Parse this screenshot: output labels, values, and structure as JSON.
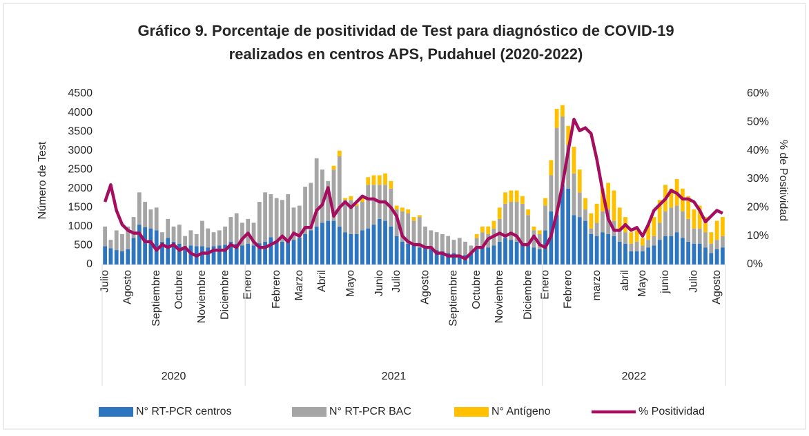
{
  "chart_data": {
    "type": "bar",
    "title": "Gráfico 9. Porcentaje de positividad de Test para diagnóstico de COVID-19",
    "subtitle": "realizados en centros APS, Pudahuel (2020-2022)",
    "ylabel": "Número de Test",
    "y2label": "% de Positividad",
    "stacked": true,
    "grid": false,
    "legend": "bottom",
    "categories": [
      "Julio",
      null,
      null,
      null,
      "Agosto",
      null,
      null,
      null,
      null,
      "Septiembre",
      null,
      null,
      null,
      "Octubre",
      null,
      null,
      null,
      "Noviembre",
      null,
      null,
      null,
      "Diciembre",
      null,
      null,
      null,
      "Enero",
      null,
      null,
      null,
      null,
      "Febrero",
      null,
      null,
      null,
      "Marzo",
      null,
      null,
      null,
      "Abril",
      null,
      null,
      null,
      null,
      "Mayo",
      null,
      null,
      null,
      null,
      "Junio",
      null,
      null,
      "Julio",
      null,
      null,
      null,
      null,
      "Agosto",
      null,
      null,
      null,
      null,
      "Septiembre",
      null,
      null,
      null,
      "Octubre",
      null,
      null,
      null,
      "Noviembre",
      null,
      null,
      null,
      null,
      "Diciembre",
      null,
      null,
      "Enero",
      null,
      null,
      null,
      "Febrero",
      null,
      null,
      null,
      null,
      "marzo",
      null,
      null,
      null,
      null,
      "abril",
      null,
      null,
      "Mayo",
      null,
      null,
      null,
      "junio",
      null,
      null,
      null,
      null,
      "Julio",
      null,
      null,
      null,
      "Agosto",
      null
    ],
    "years": [
      {
        "name": "2020",
        "weeks": 25
      },
      {
        "name": "2021",
        "weeks": 52
      },
      {
        "name": "2022",
        "weeks": 32
      }
    ],
    "series": [
      {
        "name": "N° RT-PCR centros",
        "color": "#2e75c0",
        "values": [
          480,
          430,
          380,
          350,
          400,
          700,
          1050,
          980,
          950,
          900,
          600,
          700,
          600,
          550,
          480,
          500,
          480,
          480,
          450,
          480,
          500,
          520,
          600,
          550,
          500,
          550,
          500,
          560,
          600,
          720,
          620,
          600,
          650,
          650,
          700,
          800,
          900,
          1000,
          1100,
          1150,
          1150,
          1000,
          850,
          800,
          800,
          900,
          950,
          1050,
          1200,
          1150,
          1000,
          750,
          600,
          550,
          500,
          450,
          450,
          400,
          380,
          350,
          300,
          300,
          250,
          250,
          300,
          400,
          450,
          450,
          500,
          600,
          700,
          650,
          600,
          550,
          500,
          450,
          400,
          900,
          1400,
          1300,
          2100,
          2000,
          1300,
          1250,
          1150,
          800,
          750,
          850,
          800,
          750,
          600,
          550,
          350,
          350,
          350,
          450,
          500,
          650,
          750,
          750,
          850,
          700,
          600,
          550,
          550,
          450,
          300,
          400,
          450
        ]
      },
      {
        "name": "N° RT-PCR BAC",
        "color": "#a5a5a5",
        "values": [
          520,
          220,
          520,
          450,
          600,
          550,
          850,
          670,
          500,
          600,
          250,
          500,
          400,
          500,
          270,
          400,
          320,
          670,
          500,
          370,
          400,
          480,
          650,
          800,
          600,
          650,
          600,
          1090,
          1300,
          1130,
          1130,
          1100,
          1200,
          850,
          850,
          1250,
          1250,
          1800,
          1400,
          1050,
          1350,
          1850,
          850,
          900,
          750,
          750,
          1150,
          1050,
          900,
          950,
          1000,
          700,
          800,
          800,
          650,
          800,
          550,
          500,
          470,
          450,
          450,
          350,
          450,
          350,
          200,
          300,
          400,
          350,
          450,
          600,
          900,
          1000,
          1050,
          1050,
          800,
          450,
          400,
          650,
          950,
          2300,
          1800,
          1150,
          1100,
          650,
          300,
          150,
          350,
          550,
          650,
          400,
          300,
          300,
          200,
          250,
          150,
          200,
          250,
          450,
          650,
          750,
          700,
          700,
          600,
          400,
          400,
          400,
          250,
          250,
          300
        ]
      },
      {
        "name": "N° Antígeno",
        "color": "#ffc000",
        "values": [
          0,
          0,
          0,
          0,
          0,
          0,
          0,
          0,
          0,
          0,
          0,
          0,
          0,
          0,
          0,
          0,
          0,
          0,
          0,
          0,
          0,
          0,
          0,
          0,
          0,
          0,
          0,
          0,
          0,
          0,
          0,
          0,
          0,
          0,
          0,
          0,
          0,
          0,
          0,
          0,
          100,
          150,
          50,
          100,
          50,
          100,
          200,
          250,
          250,
          300,
          200,
          100,
          100,
          100,
          100,
          50,
          0,
          0,
          0,
          0,
          0,
          0,
          0,
          0,
          0,
          100,
          150,
          200,
          200,
          300,
          300,
          300,
          300,
          200,
          150,
          100,
          100,
          200,
          400,
          500,
          300,
          500,
          700,
          600,
          300,
          400,
          500,
          600,
          700,
          800,
          600,
          400,
          300,
          300,
          200,
          400,
          500,
          600,
          700,
          500,
          700,
          600,
          600,
          500,
          600,
          400,
          300,
          500,
          500
        ]
      },
      {
        "name": "% Positividad",
        "color": "#a50d5e",
        "type": "line",
        "axis": "y2",
        "values": [
          22,
          28,
          19,
          14,
          12,
          11,
          11,
          8,
          8,
          5,
          7,
          6,
          7,
          5,
          6,
          4,
          3,
          4,
          4,
          5,
          5,
          5,
          7,
          6,
          9,
          11,
          8,
          6,
          6,
          7,
          8,
          10,
          8,
          11,
          10,
          13,
          13,
          19,
          21,
          27,
          17,
          20,
          22,
          20,
          22,
          24,
          23,
          23,
          22,
          22,
          20,
          17,
          10,
          8,
          7,
          7,
          6,
          6,
          4,
          4,
          3,
          3,
          3,
          2,
          4,
          6,
          6,
          9,
          10,
          11,
          10,
          11,
          10,
          7,
          7,
          10,
          7,
          6,
          10,
          18,
          28,
          40,
          51,
          47,
          48,
          46,
          37,
          26,
          16,
          12,
          12,
          14,
          12,
          13,
          10,
          14,
          19,
          21,
          23,
          26,
          25,
          23,
          23,
          22,
          19,
          15,
          17,
          19,
          18
        ]
      }
    ],
    "ylim": [
      0,
      4500
    ],
    "yticks": [
      0,
      500,
      1000,
      1500,
      2000,
      2500,
      3000,
      3500,
      4000,
      4500
    ],
    "y2lim": [
      0,
      60
    ],
    "y2ticks": [
      {
        "value": 0,
        "label": "0%"
      },
      {
        "value": 10,
        "label": "10%"
      },
      {
        "value": 20,
        "label": "20%"
      },
      {
        "value": 30,
        "label": "30%"
      },
      {
        "value": 40,
        "label": "40%"
      },
      {
        "value": 50,
        "label": "50%"
      },
      {
        "value": 60,
        "label": "60%"
      }
    ]
  }
}
